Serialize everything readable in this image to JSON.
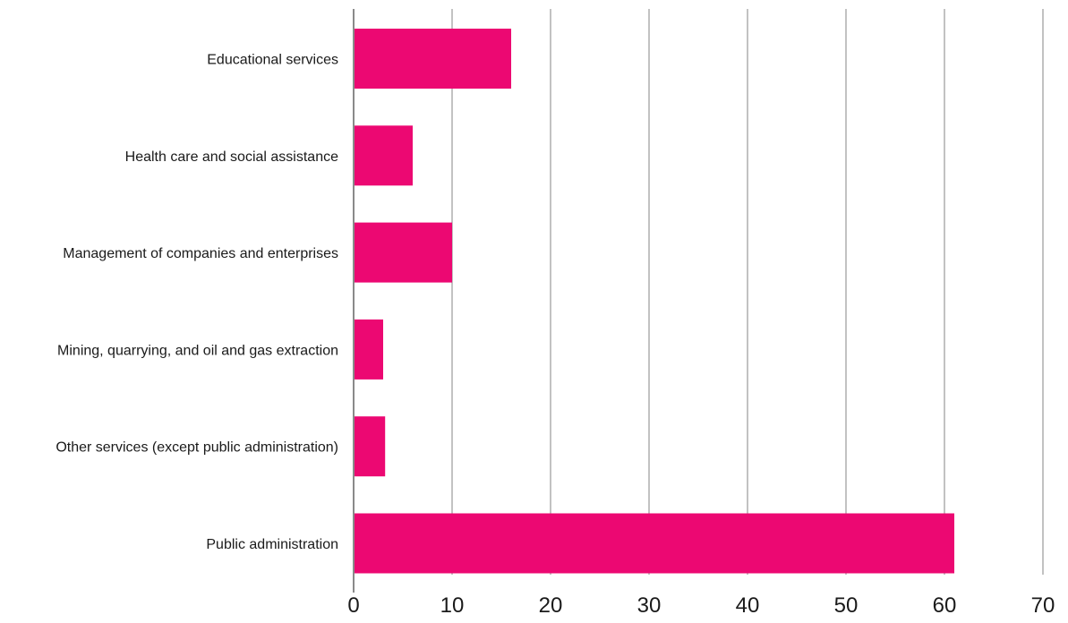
{
  "chart_data": {
    "type": "bar",
    "orientation": "horizontal",
    "title": "",
    "xlabel": "",
    "ylabel": "",
    "categories": [
      "Educational services",
      "Health care and social assistance",
      "Management of companies and enterprises",
      "Mining, quarrying, and oil and gas extraction",
      "Other services (except public administration)",
      "Public administration"
    ],
    "values": [
      16,
      6,
      10,
      3,
      3.2,
      61
    ],
    "xlim": [
      0,
      70
    ],
    "xticks": [
      0,
      10,
      20,
      30,
      40,
      50,
      60,
      70
    ],
    "grid": "vertical",
    "legend": "none",
    "bar_color": "#ec0872",
    "grid_color": "#9a9a9a"
  }
}
